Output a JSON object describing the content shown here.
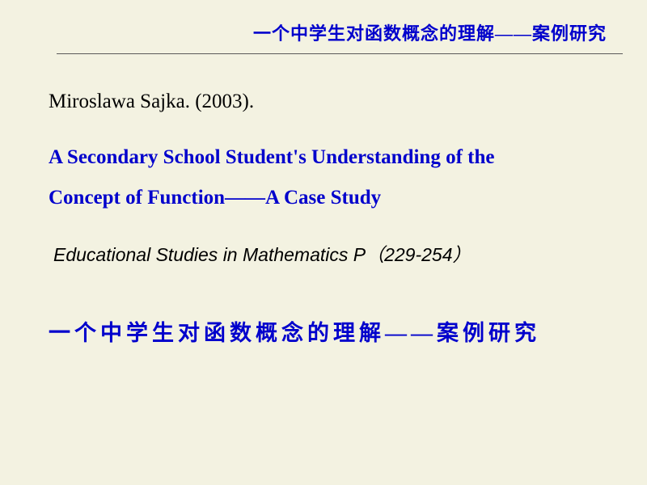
{
  "header": {
    "title": "一个中学生对函数概念的理解——案例研究"
  },
  "content": {
    "author": "Miroslawa Sajka. (2003).",
    "english_title_line1": "A Secondary School Student's Understanding of the",
    "english_title_line2": "Concept of Function——A Case Study",
    "journal": "Educational Studies in Mathematics   P（229-254）",
    "chinese_title": "一个中学生对函数概念的理解——案例研究"
  },
  "colors": {
    "background": "#f3f2e1",
    "accent_blue": "#0000cc",
    "text_black": "#000000",
    "rule": "#5a5a5a"
  },
  "typography": {
    "header_fontsize": 22,
    "author_fontsize": 25,
    "english_title_fontsize": 25,
    "journal_fontsize": 23,
    "chinese_title_fontsize": 27
  }
}
